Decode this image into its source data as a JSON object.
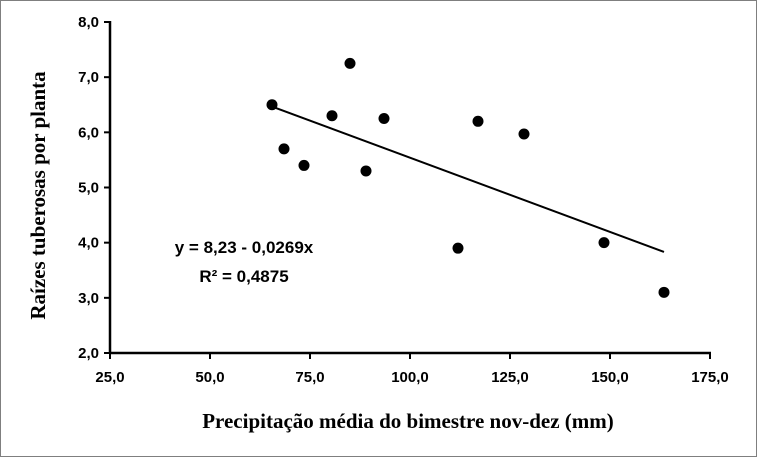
{
  "chart_data": {
    "type": "scatter",
    "title": "",
    "xlabel": "Precipitação média do bimestre nov-dez (mm)",
    "ylabel": "Raízes tuberosas por planta",
    "xlim": [
      25,
      175
    ],
    "ylim": [
      2,
      8
    ],
    "x_ticks": [
      "25,0",
      "50,0",
      "75,0",
      "100,0",
      "125,0",
      "150,0",
      "175,0"
    ],
    "y_ticks": [
      "2,0",
      "3,0",
      "4,0",
      "5,0",
      "6,0",
      "7,0",
      "8,0"
    ],
    "grid": false,
    "points": [
      {
        "x": 65.5,
        "y": 6.5
      },
      {
        "x": 68.5,
        "y": 5.7
      },
      {
        "x": 73.5,
        "y": 5.4
      },
      {
        "x": 80.5,
        "y": 6.3
      },
      {
        "x": 85.0,
        "y": 7.25
      },
      {
        "x": 89.0,
        "y": 5.3
      },
      {
        "x": 93.5,
        "y": 6.25
      },
      {
        "x": 112.0,
        "y": 3.9
      },
      {
        "x": 117.0,
        "y": 6.2
      },
      {
        "x": 128.5,
        "y": 5.97
      },
      {
        "x": 148.5,
        "y": 4.0
      },
      {
        "x": 163.5,
        "y": 3.1
      }
    ],
    "trendline": {
      "intercept": 8.23,
      "slope": -0.0269,
      "x_start": 65.0,
      "x_end": 163.5
    },
    "equation_text": "y = 8,23 - 0,0269x",
    "r2_text": "R² = 0,4875"
  }
}
